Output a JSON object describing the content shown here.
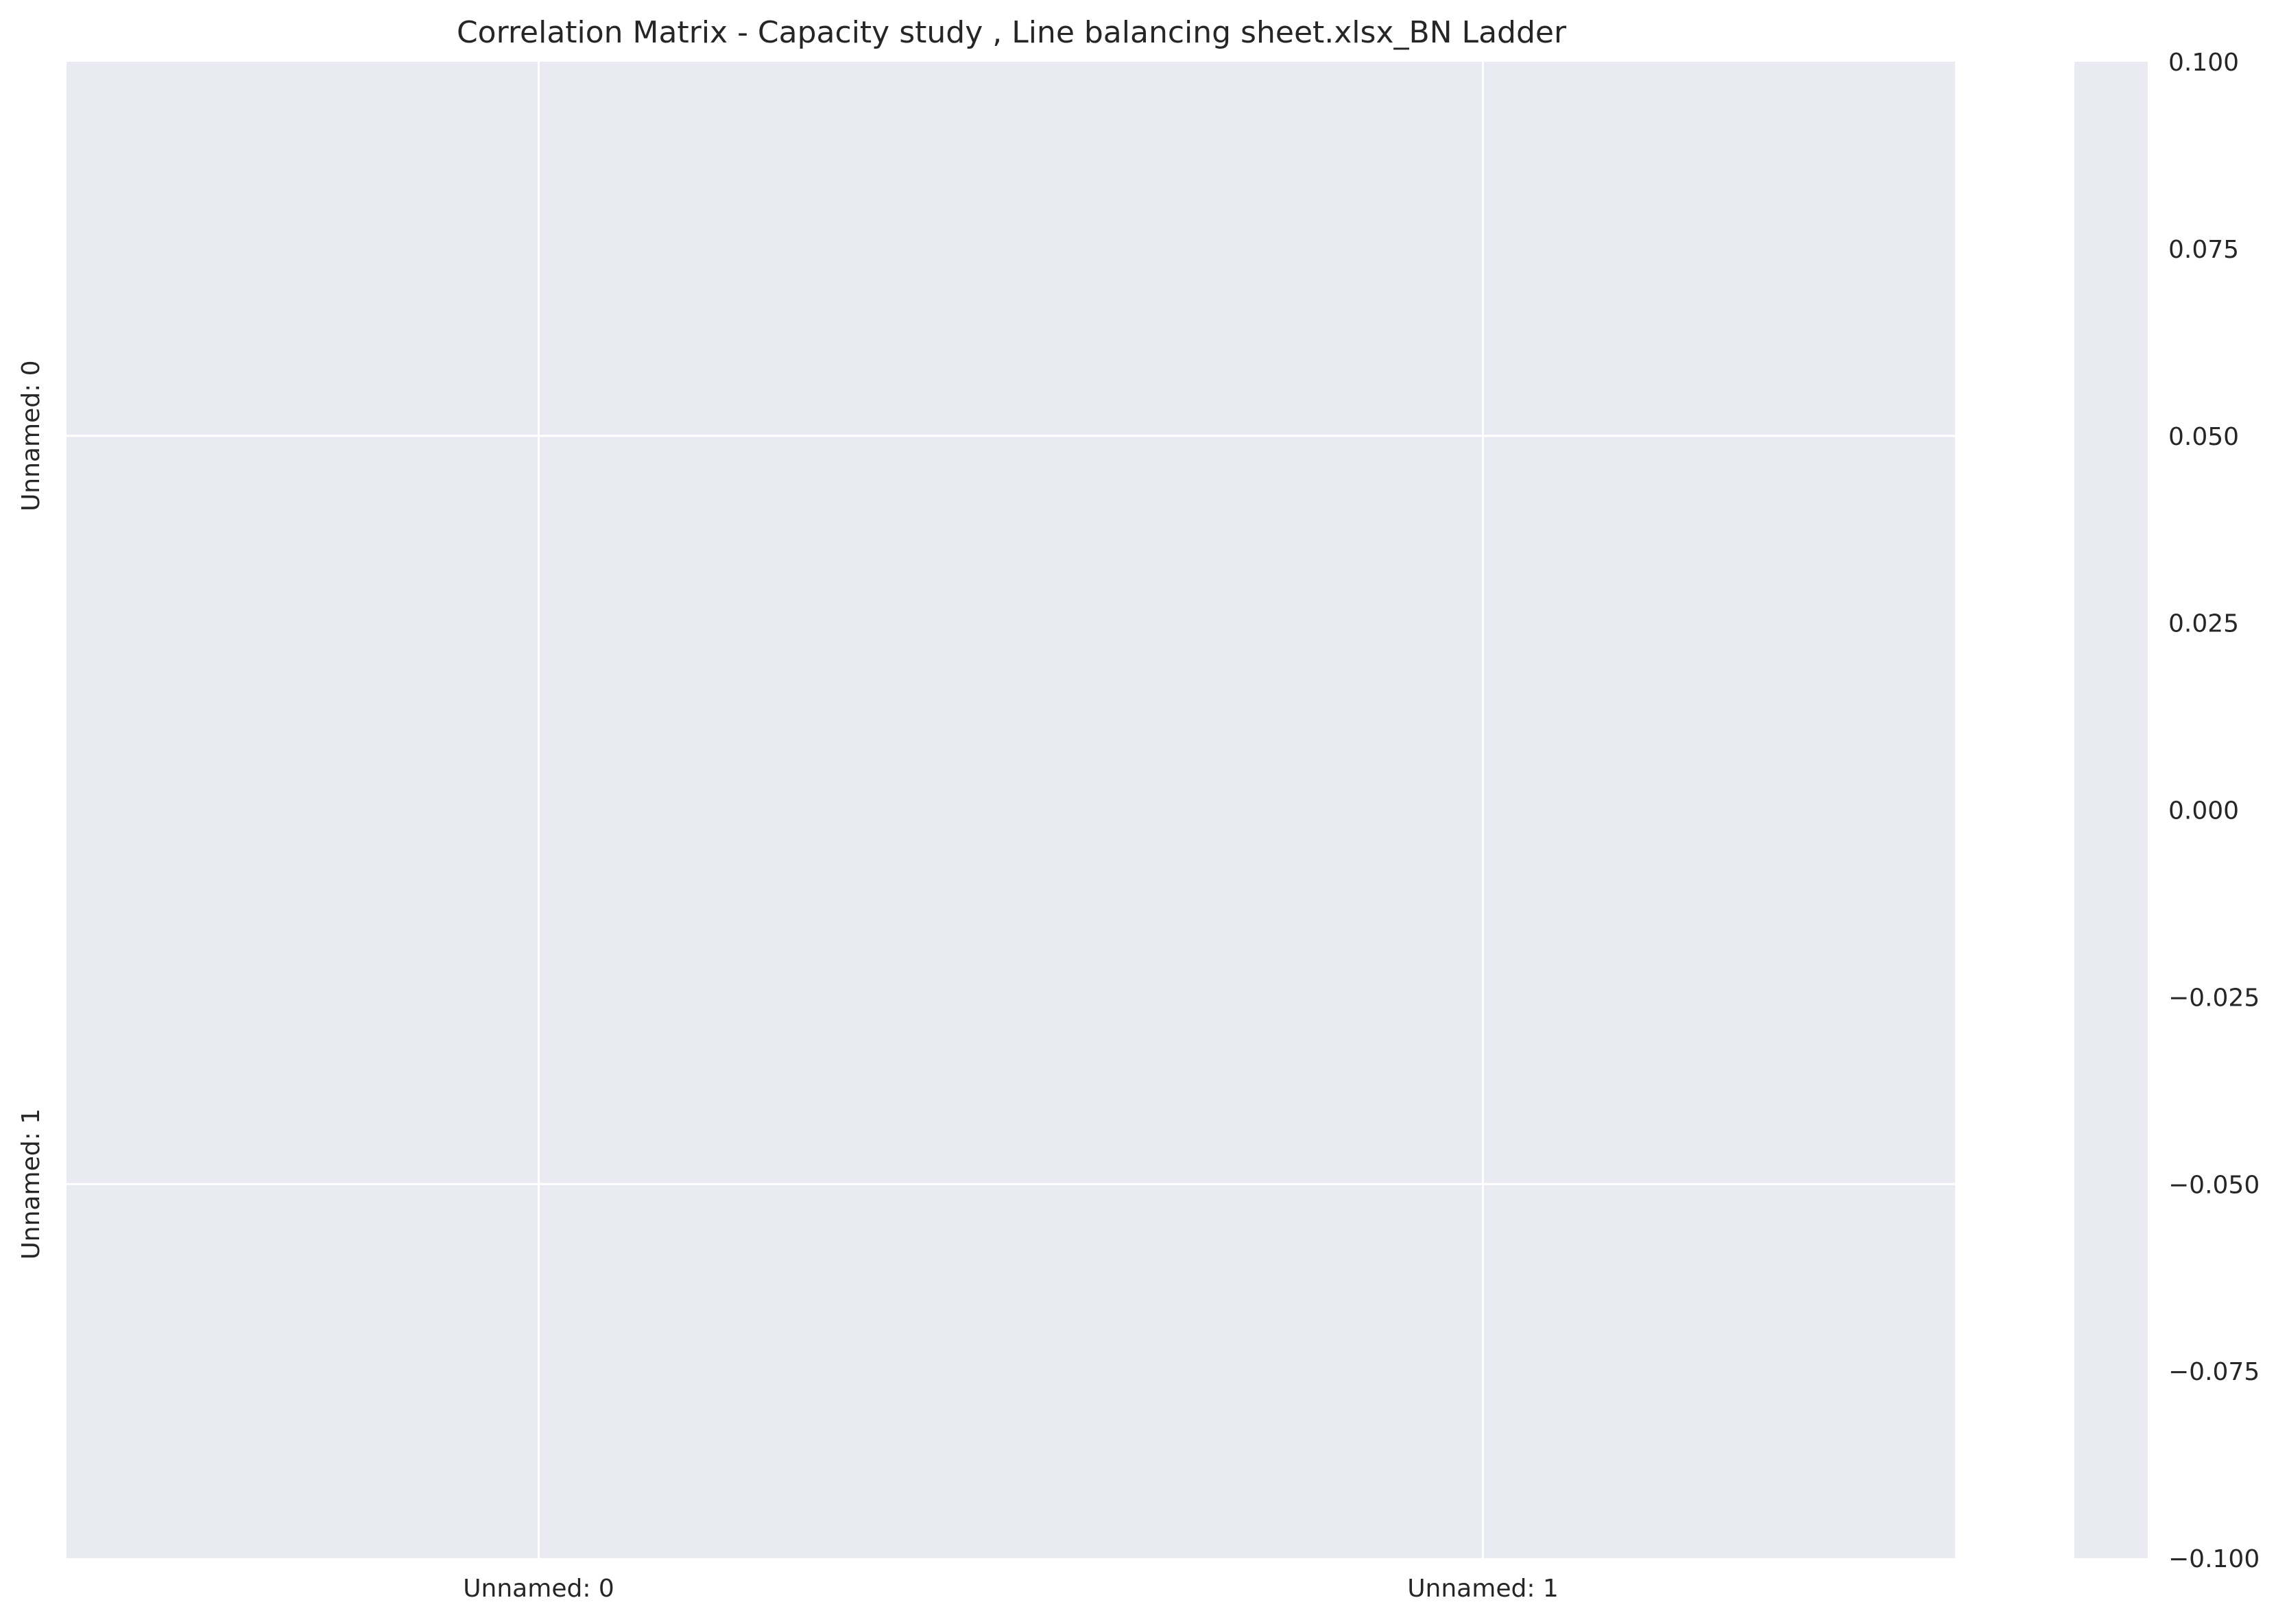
{
  "chart_data": {
    "type": "heatmap",
    "title": "Correlation Matrix - Capacity study , Line balancing sheet.xlsx_BN Ladder",
    "x_labels": [
      "Unnamed: 0",
      "Unnamed: 1"
    ],
    "y_labels": [
      "Unnamed: 0",
      "Unnamed: 1"
    ],
    "values": [
      [
        null,
        null
      ],
      [
        null,
        null
      ]
    ],
    "colorbar": {
      "range": [
        -0.1,
        0.1
      ],
      "ticks": [
        "0.100",
        "0.075",
        "0.050",
        "0.025",
        "0.000",
        "−0.025",
        "−0.050",
        "−0.075",
        "−0.100"
      ],
      "tick_values": [
        0.1,
        0.075,
        0.05,
        0.025,
        0.0,
        -0.025,
        -0.05,
        -0.075,
        -0.1
      ]
    },
    "grid": true,
    "colors": {
      "axes_background": "#eaeaf2",
      "grid": "#ffffff",
      "text": "#262626"
    }
  }
}
